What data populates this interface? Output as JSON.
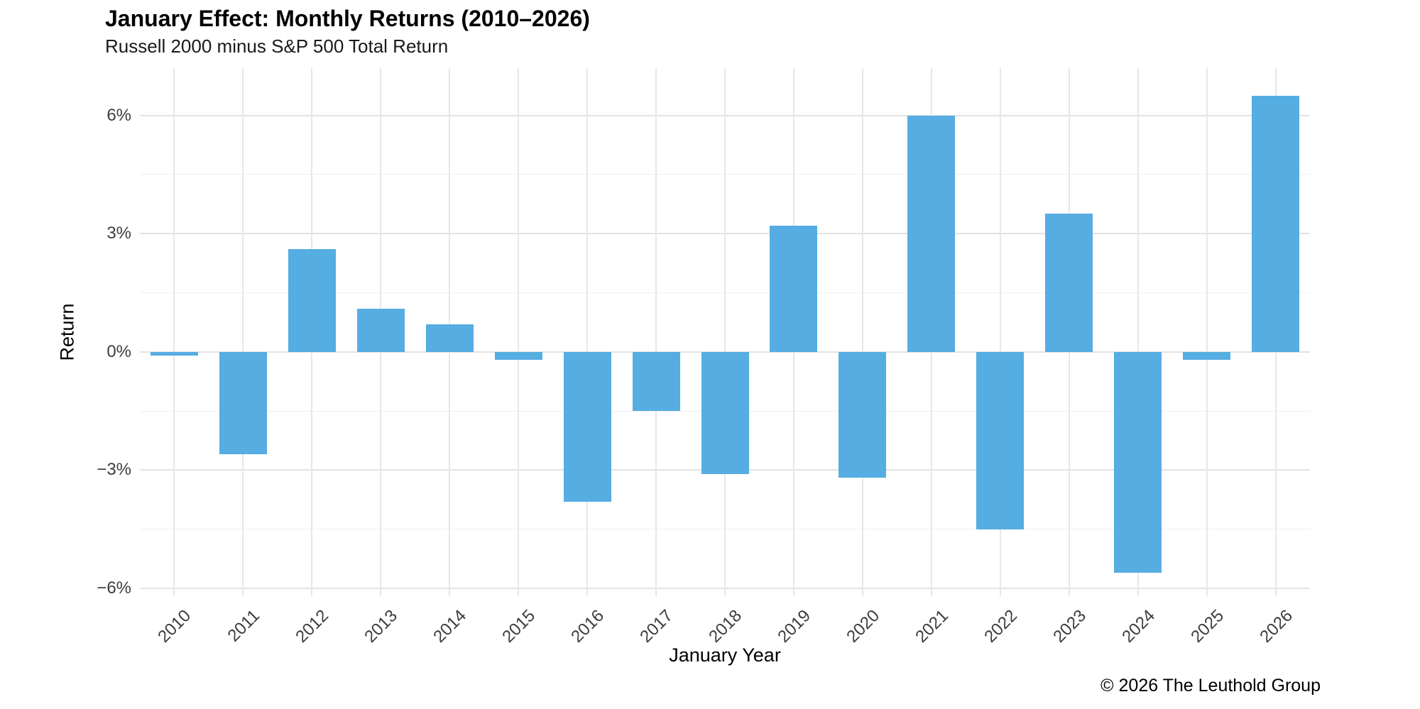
{
  "header": {
    "title": "January Effect: Monthly Returns (2010–2026)",
    "subtitle": "Russell 2000 minus S&P 500 Total Return"
  },
  "footer": {
    "copyright": "© 2026 The Leuthold Group"
  },
  "chart_data": {
    "type": "bar",
    "title": "January Effect: Monthly Returns (2010–2026)",
    "subtitle": "Russell 2000 minus S&P 500 Total Return",
    "xlabel": "January Year",
    "ylabel": "Return",
    "categories": [
      "2010",
      "2011",
      "2012",
      "2013",
      "2014",
      "2015",
      "2016",
      "2017",
      "2018",
      "2019",
      "2020",
      "2021",
      "2022",
      "2023",
      "2024",
      "2025",
      "2026"
    ],
    "values": [
      -0.1,
      -2.6,
      2.6,
      1.1,
      0.7,
      -0.2,
      -3.8,
      -1.5,
      -3.1,
      3.2,
      -3.2,
      6.0,
      -4.5,
      3.5,
      -5.6,
      -0.2,
      6.5
    ],
    "units": "percent",
    "y_ticks": [
      {
        "value": 6,
        "label": "6%"
      },
      {
        "value": 3,
        "label": "3%"
      },
      {
        "value": 0,
        "label": "0%"
      },
      {
        "value": -3,
        "label": "−3%"
      },
      {
        "value": -6,
        "label": "−6%"
      }
    ],
    "y_ticks_minor": [
      4.5,
      1.5,
      -1.5,
      -4.5
    ],
    "ylim": [
      -6.2,
      7.2
    ],
    "grid": true,
    "legend": false,
    "bar_color": "#55ADE2"
  }
}
